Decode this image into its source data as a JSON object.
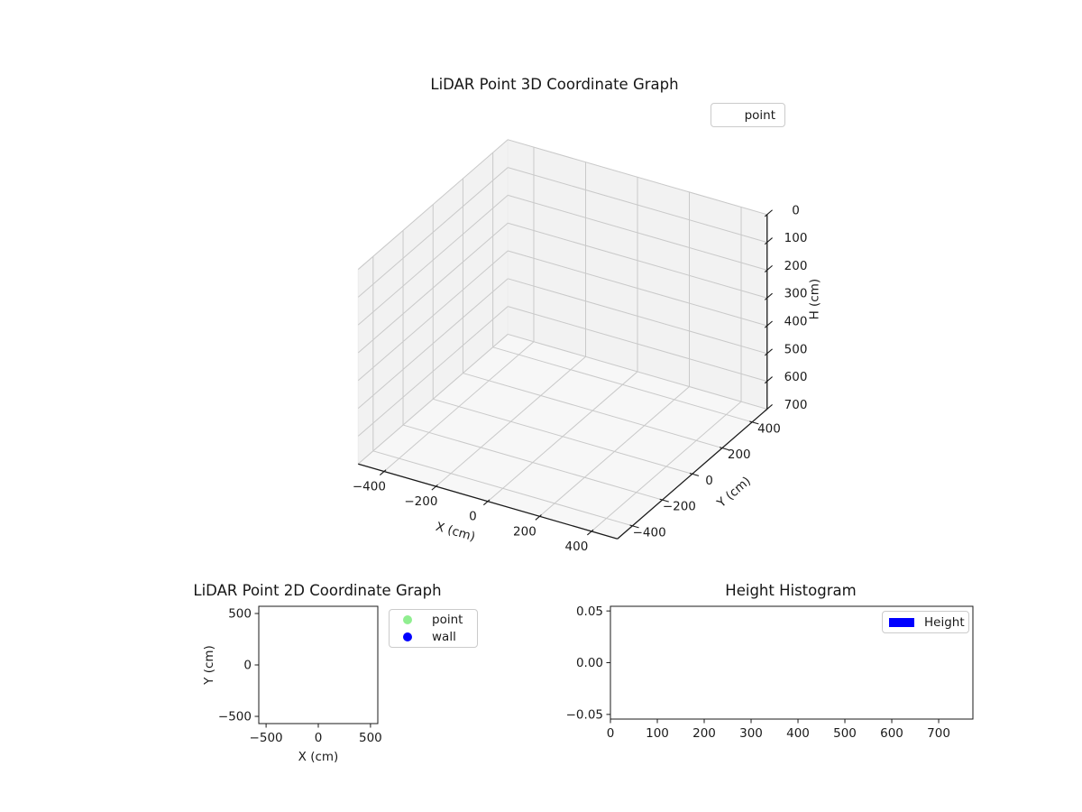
{
  "figure": {
    "background": "#ffffff",
    "text_color": "#1a1a1a"
  },
  "chart_data": [
    {
      "id": "plot3d",
      "type": "scatter",
      "projection": "3d",
      "title": "LiDAR Point 3D Coordinate Graph",
      "xlabel": "X (cm)",
      "ylabel": "Y (cm)",
      "zlabel": "H (cm)",
      "xlim": [
        -500,
        500
      ],
      "ylim": [
        -500,
        500
      ],
      "zlim": [
        0,
        700
      ],
      "z_axis_inverted": true,
      "xticks": [
        -400,
        -200,
        0,
        200,
        400
      ],
      "xtick_labels": [
        "−400",
        "−200",
        "0",
        "200",
        "400"
      ],
      "yticks": [
        -400,
        -200,
        0,
        200,
        400
      ],
      "ytick_labels": [
        "−400",
        "−200",
        "0",
        "200",
        "400"
      ],
      "zticks": [
        0,
        100,
        200,
        300,
        400,
        500,
        600,
        700
      ],
      "ztick_labels": [
        "0",
        "100",
        "200",
        "300",
        "400",
        "500",
        "600",
        "700"
      ],
      "view": {
        "elev": 30,
        "azim": -60
      },
      "grid": true,
      "legend": [
        {
          "label": "point",
          "marker": "none"
        }
      ],
      "series": [
        {
          "name": "point",
          "points": []
        }
      ]
    },
    {
      "id": "plot2d",
      "type": "scatter",
      "title": "LiDAR Point 2D Coordinate Graph",
      "xlabel": "X (cm)",
      "ylabel": "Y (cm)",
      "xlim": [
        -570,
        570
      ],
      "ylim": [
        -570,
        570
      ],
      "xticks": [
        -500,
        0,
        500
      ],
      "xtick_labels": [
        "−500",
        "0",
        "500"
      ],
      "yticks": [
        500,
        0,
        -500
      ],
      "ytick_labels": [
        "500",
        "0",
        "−500"
      ],
      "grid": false,
      "legend": [
        {
          "label": "point",
          "color": "#90EE90",
          "marker": "circle"
        },
        {
          "label": "wall",
          "color": "#0000FF",
          "marker": "circle"
        }
      ],
      "series": [
        {
          "name": "point",
          "color": "#90EE90",
          "points": []
        },
        {
          "name": "wall",
          "color": "#0000FF",
          "points": []
        }
      ]
    },
    {
      "id": "histogram",
      "type": "histogram",
      "title": "Height Histogram",
      "xlabel": "",
      "ylabel": "",
      "xlim": [
        0,
        773
      ],
      "ylim": [
        -0.0545,
        0.0545
      ],
      "xticks": [
        0,
        100,
        200,
        300,
        400,
        500,
        600,
        700
      ],
      "xtick_labels": [
        "0",
        "100",
        "200",
        "300",
        "400",
        "500",
        "600",
        "700"
      ],
      "yticks": [
        0.05,
        0.0,
        -0.05
      ],
      "ytick_labels": [
        "0.05",
        "0.00",
        "−0.05"
      ],
      "grid": false,
      "legend": [
        {
          "label": "Height",
          "color": "#0000FF",
          "marker": "rect"
        }
      ],
      "values": []
    }
  ]
}
